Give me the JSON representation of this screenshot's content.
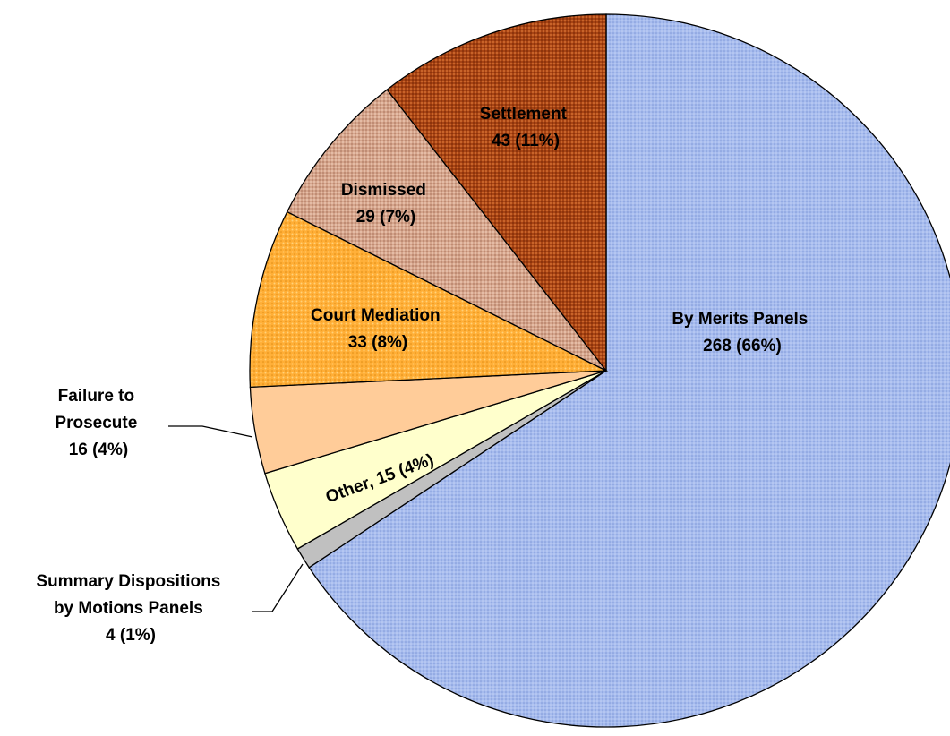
{
  "chart_data": {
    "type": "pie",
    "title": "",
    "start_angle_deg": 0,
    "direction": "clockwise",
    "slices": [
      {
        "name": "By Merits Panels",
        "value": 268,
        "percent_label": "268 (66%)",
        "color": "#9db3e8",
        "pattern": "fine-dots"
      },
      {
        "name": "Summary Dispositions by Motions Panels",
        "value": 4,
        "percent_label": "4 (1%)",
        "color": "#c0c0c0",
        "pattern": "none"
      },
      {
        "name": "Other",
        "value": 15,
        "percent_label": "Other, 15 (4%)",
        "color": "#ffffcc",
        "pattern": "none"
      },
      {
        "name": "Failure to Prosecute",
        "value": 16,
        "percent_label": "16 (4%)",
        "color": "#ffcc99",
        "pattern": "none"
      },
      {
        "name": "Court Mediation",
        "value": 33,
        "percent_label": "33 (8%)",
        "color": "#ffaa33",
        "pattern": "dots"
      },
      {
        "name": "Dismissed",
        "value": 29,
        "percent_label": "29 (7%)",
        "color": "#d8a48a",
        "pattern": "grid-dots"
      },
      {
        "name": "Settlement",
        "value": 43,
        "percent_label": "43 (11%)",
        "color": "#a53f12",
        "pattern": "grid-dots"
      }
    ],
    "labels": {
      "merits": {
        "line1": "By Merits Panels",
        "line2": "268 (66%)"
      },
      "summary": {
        "line1": "Summary Dispositions",
        "line2": "by Motions Panels",
        "line3": "4 (1%)"
      },
      "other": {
        "line1": "Other, 15 (4%)"
      },
      "failure": {
        "line1": "Failure to",
        "line2": "Prosecute",
        "line3": "16 (4%)"
      },
      "mediation": {
        "line1": "Court Mediation",
        "line2": "33 (8%)"
      },
      "dismissed": {
        "line1": "Dismissed",
        "line2": "29 (7%)"
      },
      "settlement": {
        "line1": "Settlement",
        "line2": "43 (11%)"
      }
    }
  }
}
